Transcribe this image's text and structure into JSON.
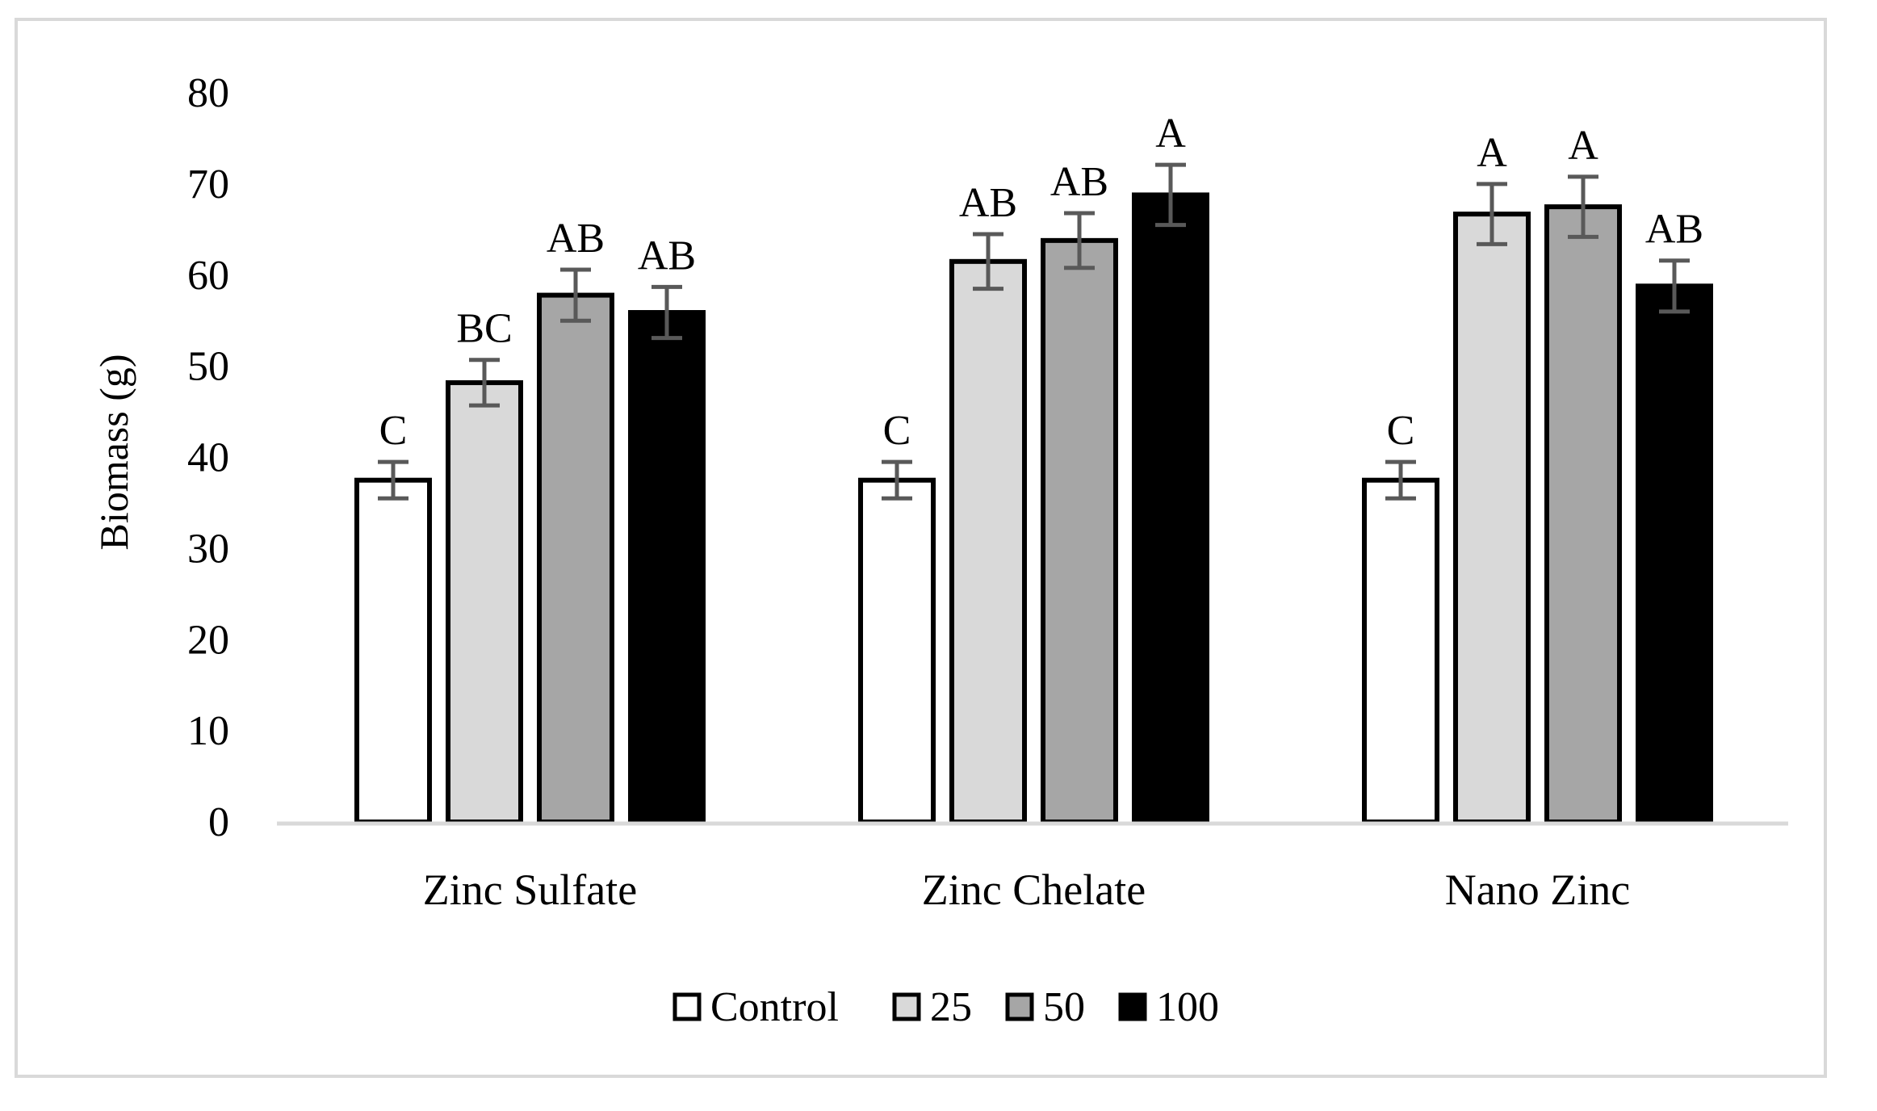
{
  "chart_data": {
    "type": "bar",
    "title": "",
    "xlabel": "",
    "ylabel": "Biomass (g)",
    "ylim": [
      0,
      80
    ],
    "yticks": [
      0,
      10,
      20,
      30,
      40,
      50,
      60,
      70,
      80
    ],
    "grid": false,
    "legend_position": "bottom",
    "categories": [
      "Zinc Sulfate",
      "Zinc Chelate",
      "Nano Zinc"
    ],
    "series": [
      {
        "name": "Control",
        "color": "#ffffff",
        "values": [
          37.5,
          37.5,
          37.5
        ],
        "errors": [
          2.0,
          2.0,
          2.0
        ],
        "letters": [
          "C",
          "C",
          "C"
        ]
      },
      {
        "name": "25",
        "color": "#d9d9d9",
        "values": [
          48.2,
          61.5,
          66.7
        ],
        "errors": [
          2.5,
          3.0,
          3.3
        ],
        "letters": [
          "BC",
          "AB",
          "A"
        ]
      },
      {
        "name": "50",
        "color": "#a6a6a6",
        "values": [
          57.8,
          63.8,
          67.5
        ],
        "errors": [
          2.8,
          3.0,
          3.3
        ],
        "letters": [
          "AB",
          "AB",
          "A"
        ]
      },
      {
        "name": "100",
        "color": "#000000",
        "values": [
          55.9,
          68.8,
          58.8
        ],
        "errors": [
          2.8,
          3.3,
          2.8
        ],
        "letters": [
          "AB",
          "A",
          "AB"
        ]
      }
    ]
  },
  "colors": {
    "axis": "#d9d9d9",
    "bar_stroke": "#000000",
    "error_bar": "#595959",
    "text": "#000000"
  }
}
